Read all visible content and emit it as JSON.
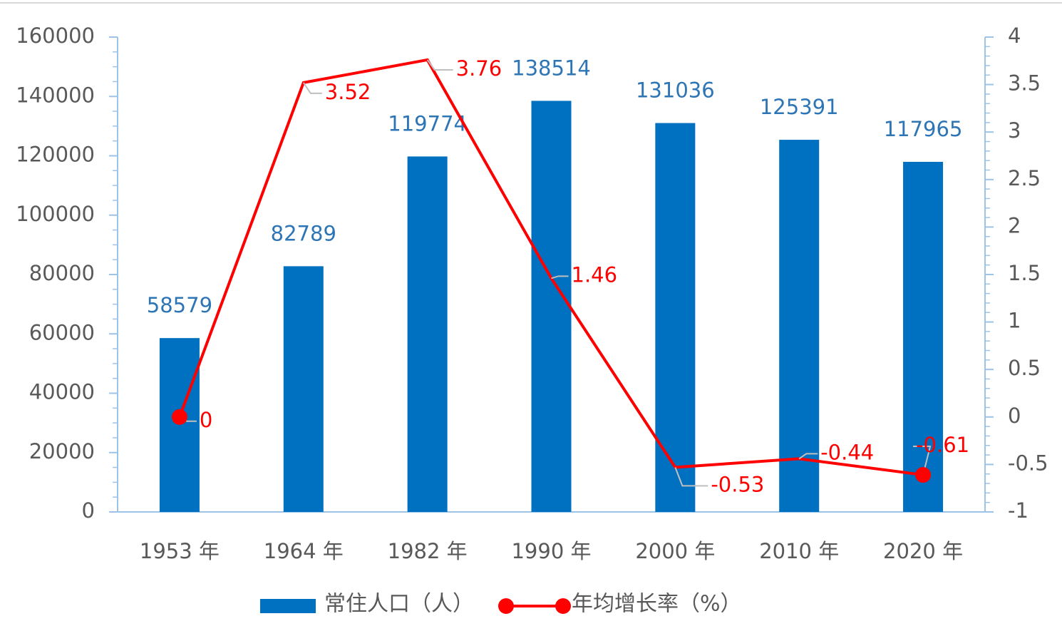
{
  "chart_data": {
    "type": "bar-line",
    "categories": [
      "1953 年",
      "1964 年",
      "1982 年",
      "1990 年",
      "2000 年",
      "2010 年",
      "2020 年"
    ],
    "series": [
      {
        "name": "常住人口（人）",
        "type": "bar",
        "color": "#0070c0",
        "values": [
          58579,
          82789,
          119774,
          138514,
          131036,
          125391,
          117965
        ]
      },
      {
        "name": "年均增长率（%）",
        "type": "line",
        "axis": "y2",
        "color": "#ff0000",
        "values": [
          0,
          3.52,
          3.76,
          1.46,
          -0.53,
          -0.44,
          -0.61
        ]
      }
    ],
    "ylim": [
      0,
      160000
    ],
    "yticks": [
      0,
      20000,
      40000,
      60000,
      80000,
      100000,
      120000,
      140000,
      160000
    ],
    "y2lim": [
      -1,
      4
    ],
    "y2ticks": [
      -1,
      -0.5,
      0,
      0.5,
      1,
      1.5,
      2,
      2.5,
      3,
      3.5,
      4
    ],
    "grid": false,
    "legend": "bottom"
  }
}
